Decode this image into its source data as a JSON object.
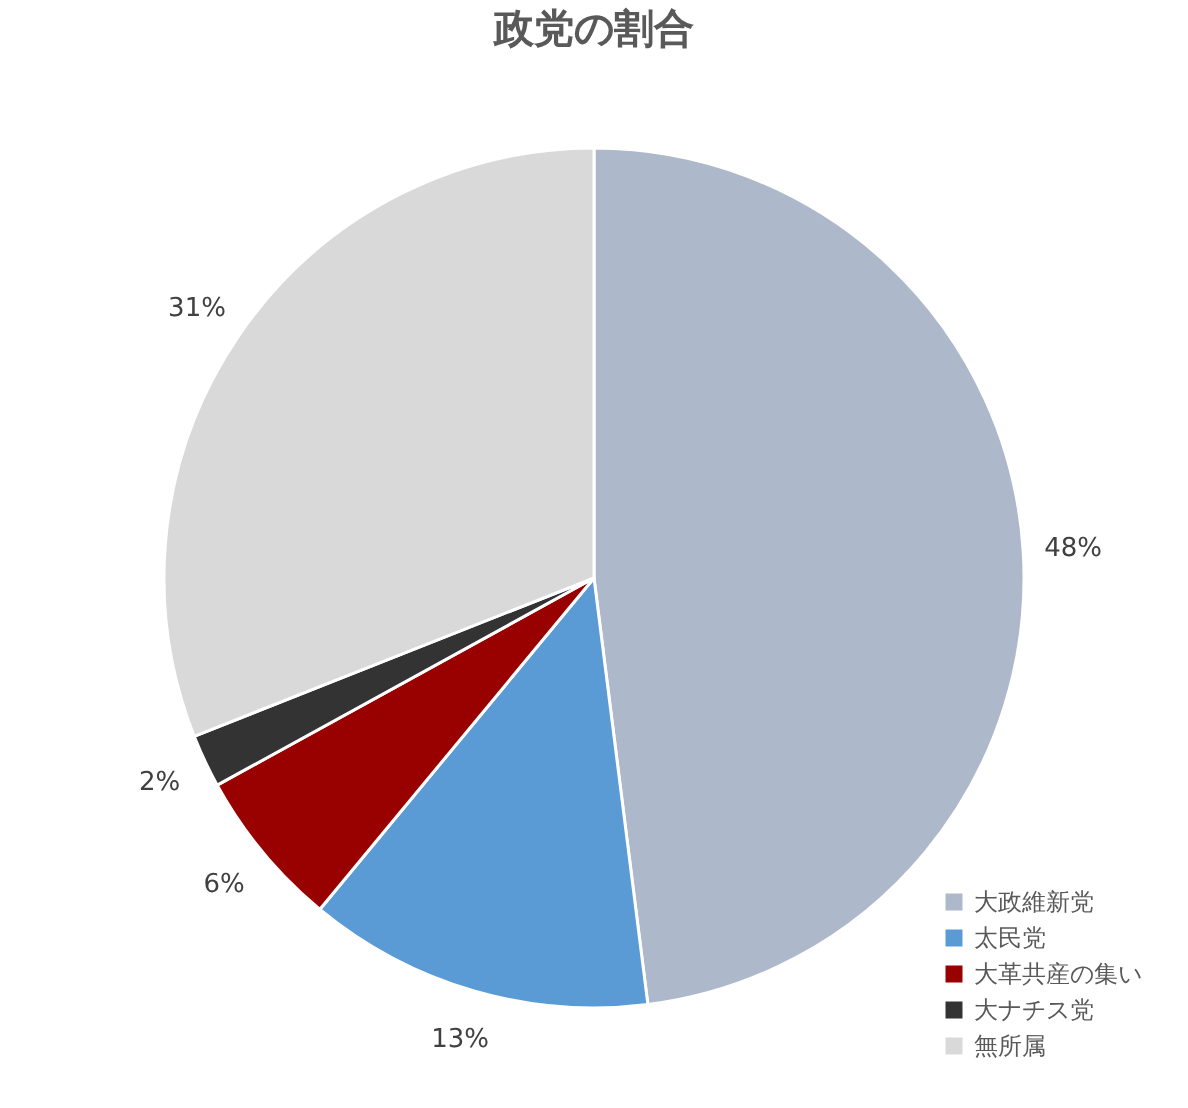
{
  "chart_data": {
    "type": "pie",
    "title": "政党の割合",
    "categories": [
      "大政維新党",
      "太民党",
      "大革共産の集い",
      "大ナチス党",
      "無所属"
    ],
    "values": [
      48,
      13,
      6,
      2,
      31
    ],
    "colors": [
      "#adb9ca",
      "#5b9bd5",
      "#990000",
      "#333333",
      "#d9d9d9"
    ],
    "value_labels": [
      "48%",
      "13%",
      "6%",
      "2%",
      "31%"
    ],
    "legend": "bottom right"
  }
}
